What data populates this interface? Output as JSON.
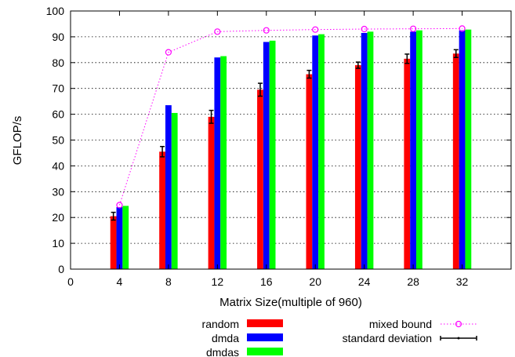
{
  "chart_data": {
    "type": "bar",
    "title": "",
    "xlabel": "Matrix Size(multiple of 960)",
    "ylabel": "GFLOP/s",
    "xlim": [
      0,
      36
    ],
    "ylim": [
      0,
      100
    ],
    "xticks": [
      0,
      4,
      8,
      12,
      16,
      20,
      24,
      28,
      32
    ],
    "yticks": [
      0,
      10,
      20,
      30,
      40,
      50,
      60,
      70,
      80,
      90,
      100
    ],
    "grid": "y-dotted",
    "x": [
      4,
      8,
      12,
      16,
      20,
      24,
      28,
      32
    ],
    "series": [
      {
        "name": "random",
        "kind": "bar",
        "color": "#ff0000",
        "values": [
          20.5,
          45.5,
          59,
          69.5,
          75.5,
          79,
          81.5,
          83.5
        ],
        "std": [
          1.5,
          2,
          2.5,
          2.5,
          1.5,
          1.2,
          1.8,
          1.5
        ]
      },
      {
        "name": "dmda",
        "kind": "bar",
        "color": "#0000ff",
        "values": [
          24,
          63.5,
          82,
          88,
          90.5,
          91.5,
          92,
          92.5
        ]
      },
      {
        "name": "dmdas",
        "kind": "bar",
        "color": "#00ff00",
        "values": [
          24.5,
          60.5,
          82.5,
          88.5,
          91,
          92,
          92.5,
          92.8
        ]
      },
      {
        "name": "mixed bound",
        "kind": "line",
        "color": "#ff00ff",
        "values": [
          24.8,
          84,
          92,
          92.5,
          92.8,
          93,
          93.1,
          93.2
        ]
      }
    ],
    "legend": {
      "placement": "bottom",
      "entries": [
        "random",
        "dmda",
        "dmdas",
        "mixed bound",
        "standard deviation"
      ]
    }
  }
}
